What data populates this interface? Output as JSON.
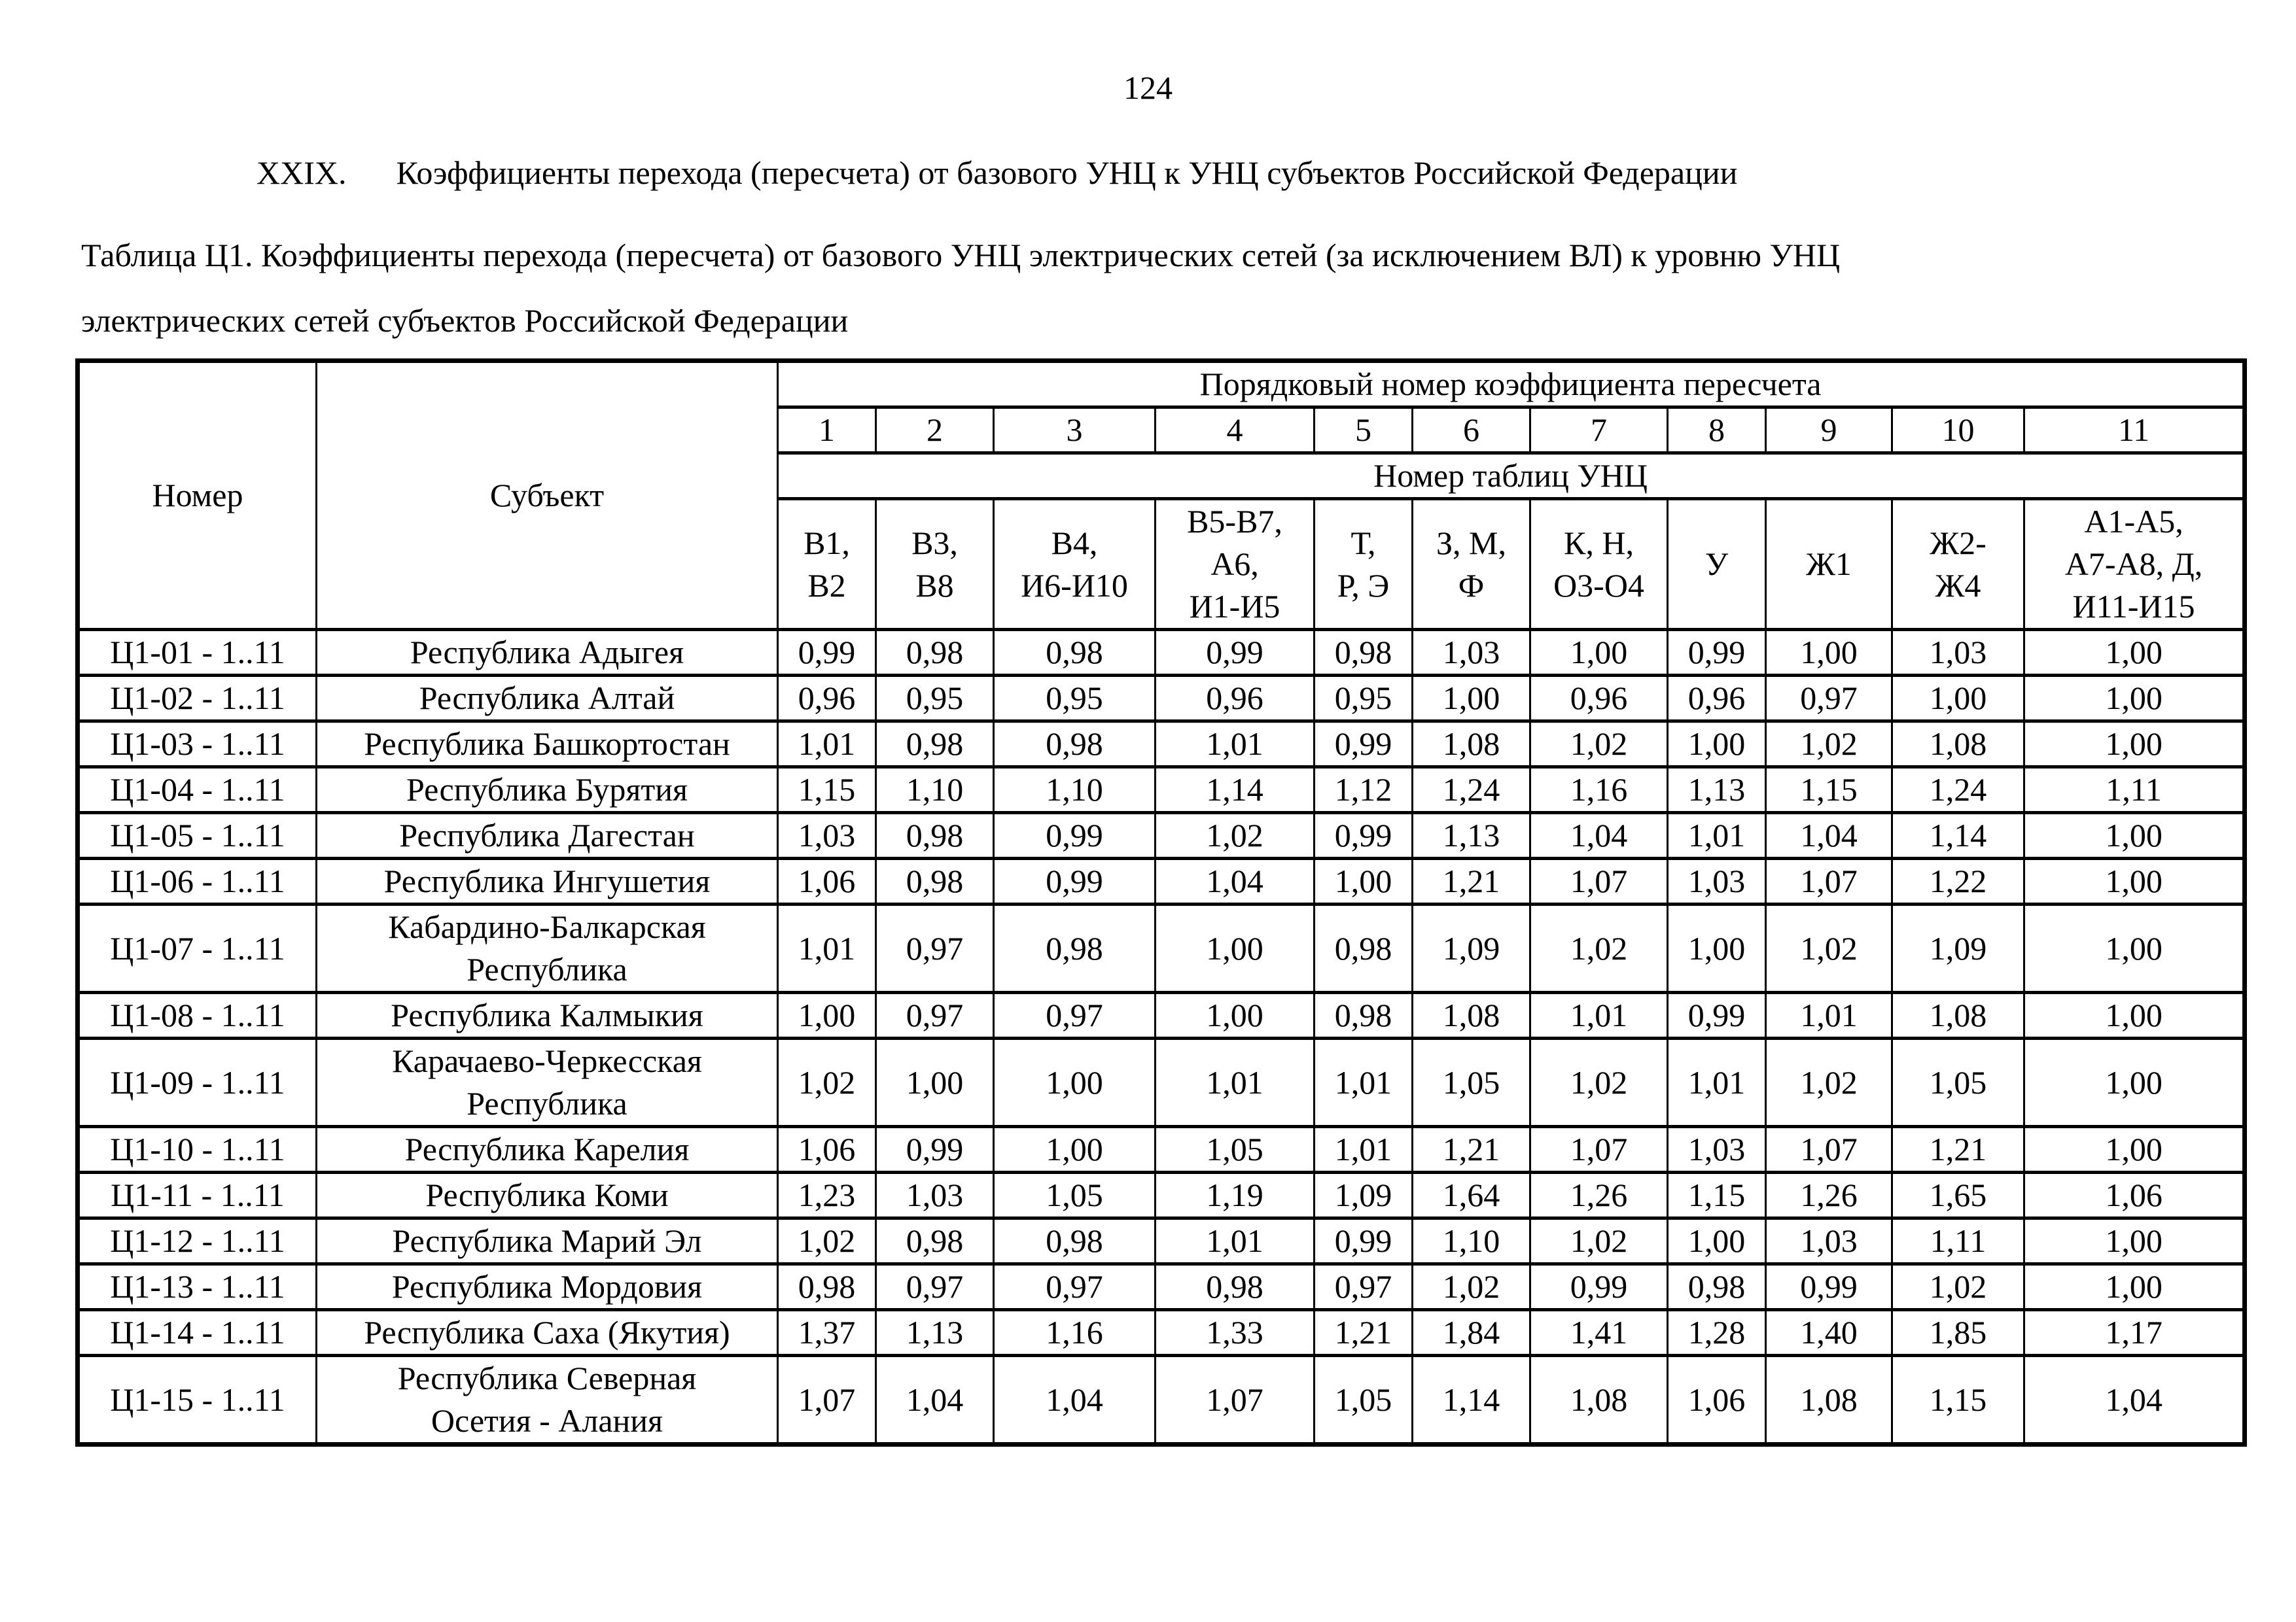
{
  "page_number": "124",
  "section_title": {
    "numeral": "XXIX.",
    "text": "Коэффициенты перехода (пересчета) от базового УНЦ к УНЦ субъектов Российской Федерации"
  },
  "table_caption": {
    "line1": "Таблица Ц1. Коэффициенты перехода (пересчета) от базового УНЦ электрических сетей (за исключением ВЛ) к уровню УНЦ",
    "line2": "электрических сетей субъектов Российской Федерации"
  },
  "table": {
    "number_header": "Номер",
    "subject_header": "Субъект",
    "ordinal_header": "Порядковый номер коэффициента пересчета",
    "ordinal_numbers": [
      "1",
      "2",
      "3",
      "4",
      "5",
      "6",
      "7",
      "8",
      "9",
      "10",
      "11"
    ],
    "unc_tables_header": "Номер таблиц УНЦ",
    "unc_table_groups": [
      "В1,\nВ2",
      "В3,\nВ8",
      "В4,\nИ6-И10",
      "В5-В7,\nА6,\nИ1-И5",
      "Т,\nР, Э",
      "З, М,\nФ",
      "К, Н,\nО3-О4",
      "У",
      "Ж1",
      "Ж2-\nЖ4",
      "А1-А5,\nА7-А8, Д,\nИ11-И15"
    ],
    "rows": [
      {
        "number": "Ц1-01 - 1..11",
        "subject": "Республика Адыгея",
        "values": [
          "0,99",
          "0,98",
          "0,98",
          "0,99",
          "0,98",
          "1,03",
          "1,00",
          "0,99",
          "1,00",
          "1,03",
          "1,00"
        ]
      },
      {
        "number": "Ц1-02 - 1..11",
        "subject": "Республика Алтай",
        "values": [
          "0,96",
          "0,95",
          "0,95",
          "0,96",
          "0,95",
          "1,00",
          "0,96",
          "0,96",
          "0,97",
          "1,00",
          "1,00"
        ]
      },
      {
        "number": "Ц1-03 - 1..11",
        "subject": "Республика Башкортостан",
        "values": [
          "1,01",
          "0,98",
          "0,98",
          "1,01",
          "0,99",
          "1,08",
          "1,02",
          "1,00",
          "1,02",
          "1,08",
          "1,00"
        ]
      },
      {
        "number": "Ц1-04 - 1..11",
        "subject": "Республика Бурятия",
        "values": [
          "1,15",
          "1,10",
          "1,10",
          "1,14",
          "1,12",
          "1,24",
          "1,16",
          "1,13",
          "1,15",
          "1,24",
          "1,11"
        ]
      },
      {
        "number": "Ц1-05 - 1..11",
        "subject": "Республика Дагестан",
        "values": [
          "1,03",
          "0,98",
          "0,99",
          "1,02",
          "0,99",
          "1,13",
          "1,04",
          "1,01",
          "1,04",
          "1,14",
          "1,00"
        ]
      },
      {
        "number": "Ц1-06 - 1..11",
        "subject": "Республика Ингушетия",
        "values": [
          "1,06",
          "0,98",
          "0,99",
          "1,04",
          "1,00",
          "1,21",
          "1,07",
          "1,03",
          "1,07",
          "1,22",
          "1,00"
        ]
      },
      {
        "number": "Ц1-07 - 1..11",
        "subject": "Кабардино-Балкарская\nРеспублика",
        "values": [
          "1,01",
          "0,97",
          "0,98",
          "1,00",
          "0,98",
          "1,09",
          "1,02",
          "1,00",
          "1,02",
          "1,09",
          "1,00"
        ]
      },
      {
        "number": "Ц1-08 - 1..11",
        "subject": "Республика Калмыкия",
        "values": [
          "1,00",
          "0,97",
          "0,97",
          "1,00",
          "0,98",
          "1,08",
          "1,01",
          "0,99",
          "1,01",
          "1,08",
          "1,00"
        ]
      },
      {
        "number": "Ц1-09 - 1..11",
        "subject": "Карачаево-Черкесская\nРеспублика",
        "values": [
          "1,02",
          "1,00",
          "1,00",
          "1,01",
          "1,01",
          "1,05",
          "1,02",
          "1,01",
          "1,02",
          "1,05",
          "1,00"
        ]
      },
      {
        "number": "Ц1-10 - 1..11",
        "subject": "Республика Карелия",
        "values": [
          "1,06",
          "0,99",
          "1,00",
          "1,05",
          "1,01",
          "1,21",
          "1,07",
          "1,03",
          "1,07",
          "1,21",
          "1,00"
        ]
      },
      {
        "number": "Ц1-11 - 1..11",
        "subject": "Республика Коми",
        "values": [
          "1,23",
          "1,03",
          "1,05",
          "1,19",
          "1,09",
          "1,64",
          "1,26",
          "1,15",
          "1,26",
          "1,65",
          "1,06"
        ]
      },
      {
        "number": "Ц1-12 - 1..11",
        "subject": "Республика Марий Эл",
        "values": [
          "1,02",
          "0,98",
          "0,98",
          "1,01",
          "0,99",
          "1,10",
          "1,02",
          "1,00",
          "1,03",
          "1,11",
          "1,00"
        ]
      },
      {
        "number": "Ц1-13 - 1..11",
        "subject": "Республика Мордовия",
        "values": [
          "0,98",
          "0,97",
          "0,97",
          "0,98",
          "0,97",
          "1,02",
          "0,99",
          "0,98",
          "0,99",
          "1,02",
          "1,00"
        ]
      },
      {
        "number": "Ц1-14 - 1..11",
        "subject": "Республика Саха (Якутия)",
        "values": [
          "1,37",
          "1,13",
          "1,16",
          "1,33",
          "1,21",
          "1,84",
          "1,41",
          "1,28",
          "1,40",
          "1,85",
          "1,17"
        ]
      },
      {
        "number": "Ц1-15 - 1..11",
        "subject": "Республика Северная\nОсетия - Алания",
        "values": [
          "1,07",
          "1,04",
          "1,04",
          "1,07",
          "1,05",
          "1,14",
          "1,08",
          "1,06",
          "1,08",
          "1,15",
          "1,04"
        ]
      }
    ]
  }
}
